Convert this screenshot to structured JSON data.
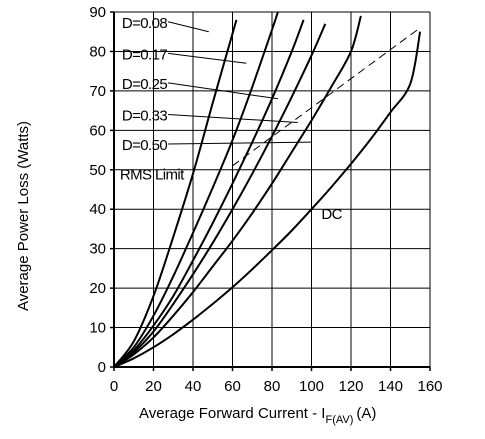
{
  "chart_data": {
    "type": "line",
    "title": "",
    "xlabel": "Average Forward Current - I",
    "xlabel_subscript": "F(AV)",
    "xlabel_unit": "(A)",
    "ylabel": "Average Power Loss (Watts)",
    "xlim": [
      0,
      160
    ],
    "ylim": [
      0,
      90
    ],
    "xticks": [
      0,
      20,
      40,
      60,
      80,
      100,
      120,
      140,
      160
    ],
    "yticks": [
      0,
      10,
      20,
      30,
      40,
      50,
      60,
      70,
      80,
      90
    ],
    "grid": true,
    "series": [
      {
        "name": "D=0.08",
        "x": [
          0,
          10,
          20,
          30,
          40,
          50,
          60,
          62
        ],
        "y": [
          0,
          6.5,
          18,
          33,
          49,
          67,
          84.5,
          88
        ]
      },
      {
        "name": "D=0.17",
        "x": [
          0,
          10,
          20,
          30,
          40,
          50,
          60,
          70,
          80,
          83
        ],
        "y": [
          0,
          5,
          13,
          23,
          34,
          45.5,
          57.5,
          71,
          85.5,
          90
        ]
      },
      {
        "name": "D=0.25",
        "x": [
          0,
          10,
          20,
          30,
          40,
          50,
          60,
          70,
          80,
          90,
          96
        ],
        "y": [
          0,
          4.2,
          10.5,
          18,
          27,
          36.5,
          46.5,
          57,
          68,
          80,
          88
        ]
      },
      {
        "name": "D=0.33",
        "x": [
          0,
          10,
          20,
          30,
          40,
          50,
          60,
          70,
          80,
          90,
          100,
          107
        ],
        "y": [
          0,
          3.7,
          9,
          16,
          23.5,
          31.5,
          40,
          49,
          58.5,
          68.5,
          79,
          87
        ]
      },
      {
        "name": "D=0.50",
        "x": [
          0,
          10,
          20,
          30,
          40,
          50,
          60,
          70,
          80,
          90,
          100,
          110,
          120,
          125
        ],
        "y": [
          0,
          3.2,
          7.5,
          13,
          19,
          25.5,
          32,
          39,
          46.5,
          54.5,
          62.5,
          71,
          80,
          89
        ]
      },
      {
        "name": "DC",
        "x": [
          0,
          10,
          20,
          30,
          40,
          50,
          60,
          70,
          80,
          90,
          100,
          110,
          120,
          130,
          140,
          150,
          155
        ],
        "y": [
          0,
          2.2,
          5,
          8.3,
          12,
          16,
          20.2,
          24.8,
          29.6,
          34.6,
          40,
          45.6,
          51.5,
          57.8,
          64.6,
          71.8,
          85
        ]
      },
      {
        "name": "RMS Limit",
        "dashed": true,
        "x": [
          60,
          155
        ],
        "y": [
          51,
          86
        ]
      }
    ],
    "annotations": [
      {
        "text": "D=0.08",
        "series": "D=0.08",
        "x": 4,
        "y": 86,
        "target_x": 48,
        "target_y": 85
      },
      {
        "text": "D=0.17",
        "series": "D=0.17",
        "x": 4,
        "y": 78,
        "target_x": 67,
        "target_y": 77
      },
      {
        "text": "D=0.25",
        "series": "D=0.25",
        "x": 4,
        "y": 70.5,
        "target_x": 83,
        "target_y": 68
      },
      {
        "text": "D=0.33",
        "series": "D=0.33",
        "x": 4,
        "y": 62.5,
        "target_x": 93,
        "target_y": 62
      },
      {
        "text": "D=0.50",
        "series": "D=0.50",
        "x": 4,
        "y": 55,
        "target_x": 100,
        "target_y": 57
      },
      {
        "text": "RMS Limit",
        "series": "RMS Limit",
        "x": 3,
        "y": 47.5
      },
      {
        "text": "DC",
        "series": "DC",
        "x": 105,
        "y": 37.5
      }
    ]
  }
}
